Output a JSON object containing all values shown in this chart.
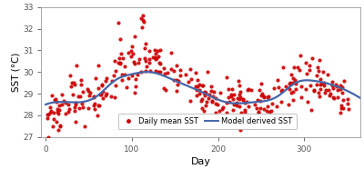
{
  "title": "",
  "xlabel": "Day",
  "ylabel": "SST (°C)",
  "xlim": [
    -5,
    365
  ],
  "ylim": [
    27,
    33
  ],
  "yticks": [
    27,
    28,
    29,
    30,
    31,
    32,
    33
  ],
  "xticks": [
    0,
    100,
    200,
    300
  ],
  "scatter_color": "#CC0000",
  "scatter_size": 9,
  "scatter_alpha": 0.9,
  "line_color": "#4466AA",
  "line_width": 1.6,
  "background_color": "#FFFFFF",
  "panel_color": "#FFFFFF",
  "legend_labels": [
    "Daily mean SST",
    "Model derived SST"
  ],
  "seed": 42,
  "curve_points": {
    "days": [
      0,
      30,
      60,
      80,
      100,
      120,
      150,
      180,
      210,
      240,
      270,
      290,
      310,
      340,
      365
    ],
    "values": [
      28.5,
      28.6,
      28.9,
      29.6,
      29.9,
      30.0,
      29.6,
      29.1,
      28.6,
      28.6,
      28.9,
      29.5,
      29.6,
      29.3,
      28.8
    ]
  }
}
